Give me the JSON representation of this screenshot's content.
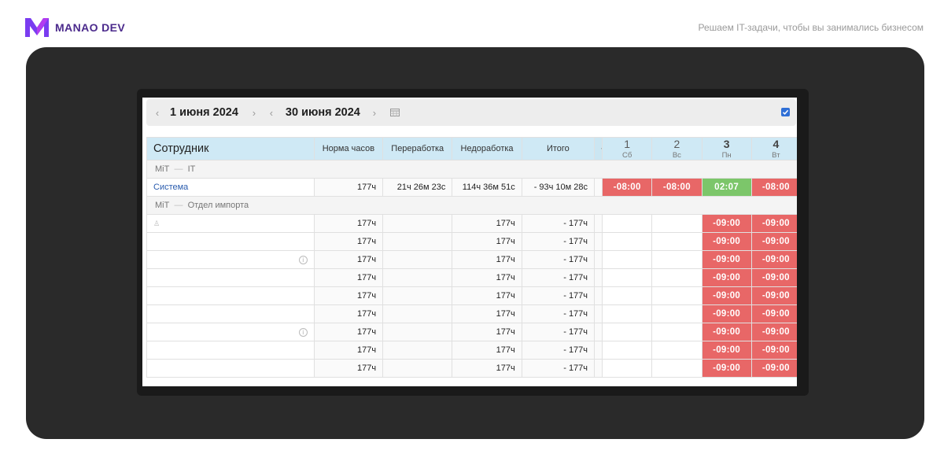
{
  "brand": {
    "name": "MANAO DEV",
    "tagline": "Решаем IT-задачи, чтобы вы занимались бизнесом",
    "accent": "#4b2a8c"
  },
  "toolbar": {
    "date_from": "1 июня 2024",
    "date_to": "30 июня 2024",
    "show_checked": true
  },
  "table": {
    "headers": {
      "employee": "Сотрудник",
      "norm": "Норма часов",
      "overtime": "Переработка",
      "undertime": "Недоработка",
      "total": "Итого",
      "scroll": "‹"
    },
    "days": [
      {
        "num": "1",
        "wd": "Сб"
      },
      {
        "num": "2",
        "wd": "Вс"
      },
      {
        "num": "3",
        "wd": "Пн"
      },
      {
        "num": "4",
        "wd": "Вт"
      }
    ],
    "groups": [
      {
        "org": "MiT",
        "sep": "—",
        "dept": "IT",
        "rows": [
          {
            "name": "Система",
            "norm": "177ч",
            "over": "21ч 26м 23с",
            "under": "114ч 36м 51с",
            "total": "- 93ч 10м 28с",
            "cells": [
              "-08:00",
              "-08:00",
              "02:07",
              "-08:00"
            ]
          }
        ]
      },
      {
        "org": "MiT",
        "sep": "—",
        "dept": "Отдел импорта",
        "rows": [
          {
            "name": "",
            "norm": "177ч",
            "over": "",
            "under": "177ч",
            "total": "- 177ч",
            "cells": [
              "",
              "",
              "-09:00",
              "-09:00"
            ]
          },
          {
            "name": "",
            "norm": "177ч",
            "over": "",
            "under": "177ч",
            "total": "- 177ч",
            "cells": [
              "",
              "",
              "-09:00",
              "-09:00"
            ]
          },
          {
            "name": "",
            "norm": "177ч",
            "over": "",
            "under": "177ч",
            "total": "- 177ч",
            "cells": [
              "",
              "",
              "-09:00",
              "-09:00"
            ]
          },
          {
            "name": "",
            "norm": "177ч",
            "over": "",
            "under": "177ч",
            "total": "- 177ч",
            "cells": [
              "",
              "",
              "-09:00",
              "-09:00"
            ]
          },
          {
            "name": "",
            "norm": "177ч",
            "over": "",
            "under": "177ч",
            "total": "- 177ч",
            "cells": [
              "",
              "",
              "-09:00",
              "-09:00"
            ]
          },
          {
            "name": "",
            "norm": "177ч",
            "over": "",
            "under": "177ч",
            "total": "- 177ч",
            "cells": [
              "",
              "",
              "-09:00",
              "-09:00"
            ]
          },
          {
            "name": "",
            "norm": "177ч",
            "over": "",
            "under": "177ч",
            "total": "- 177ч",
            "cells": [
              "",
              "",
              "-09:00",
              "-09:00"
            ]
          },
          {
            "name": "",
            "norm": "177ч",
            "over": "",
            "under": "177ч",
            "total": "- 177ч",
            "cells": [
              "",
              "",
              "-09:00",
              "-09:00"
            ]
          },
          {
            "name": "",
            "norm": "177ч",
            "over": "",
            "under": "177ч",
            "total": "- 177ч",
            "cells": [
              "",
              "",
              "-09:00",
              "-09:00"
            ]
          }
        ]
      }
    ]
  }
}
